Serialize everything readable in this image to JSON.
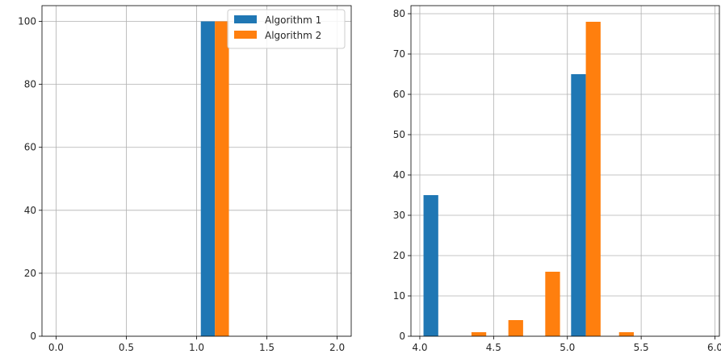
{
  "chart_data": [
    {
      "type": "bar",
      "grid": true,
      "legend": {
        "placement": "top-right"
      },
      "xlim": [
        -0.1,
        2.1
      ],
      "ylim": [
        0,
        105
      ],
      "xticks": [
        0.0,
        0.5,
        1.0,
        1.5,
        2.0
      ],
      "xtick_labels": [
        "0.0",
        "0.5",
        "1.0",
        "1.5",
        "2.0"
      ],
      "yticks": [
        0,
        20,
        40,
        60,
        80,
        100
      ],
      "ytick_labels": [
        "0",
        "20",
        "40",
        "60",
        "80",
        "100"
      ],
      "series": [
        {
          "name": "Algorithm 1",
          "color": "#1f77b4",
          "bars": [
            {
              "x0": 1.03,
              "x1": 1.13,
              "value": 100
            }
          ]
        },
        {
          "name": "Algorithm 2",
          "color": "#ff7f0e",
          "bars": [
            {
              "x0": 1.13,
              "x1": 1.23,
              "value": 100
            }
          ]
        }
      ]
    },
    {
      "type": "bar",
      "grid": true,
      "xlim": [
        3.94,
        6.03
      ],
      "ylim": [
        0,
        82
      ],
      "xticks": [
        4.0,
        4.5,
        5.0,
        5.5,
        6.0
      ],
      "xtick_labels": [
        "4.0",
        "4.5",
        "5.0",
        "5.5",
        "6.0"
      ],
      "yticks": [
        0,
        10,
        20,
        30,
        40,
        50,
        60,
        70,
        80
      ],
      "ytick_labels": [
        "0",
        "10",
        "20",
        "30",
        "40",
        "50",
        "60",
        "70",
        "80"
      ],
      "series": [
        {
          "name": "Algorithm 1",
          "color": "#1f77b4",
          "bars": [
            {
              "x0": 4.025,
              "x1": 4.125,
              "value": 35
            },
            {
              "x0": 5.025,
              "x1": 5.125,
              "value": 65
            }
          ]
        },
        {
          "name": "Algorithm 2",
          "color": "#ff7f0e",
          "bars": [
            {
              "x0": 4.35,
              "x1": 4.45,
              "value": 1
            },
            {
              "x0": 4.6,
              "x1": 4.7,
              "value": 4
            },
            {
              "x0": 4.85,
              "x1": 4.95,
              "value": 16
            },
            {
              "x0": 5.125,
              "x1": 5.225,
              "value": 78
            },
            {
              "x0": 5.35,
              "x1": 5.45,
              "value": 1
            }
          ]
        }
      ]
    }
  ]
}
